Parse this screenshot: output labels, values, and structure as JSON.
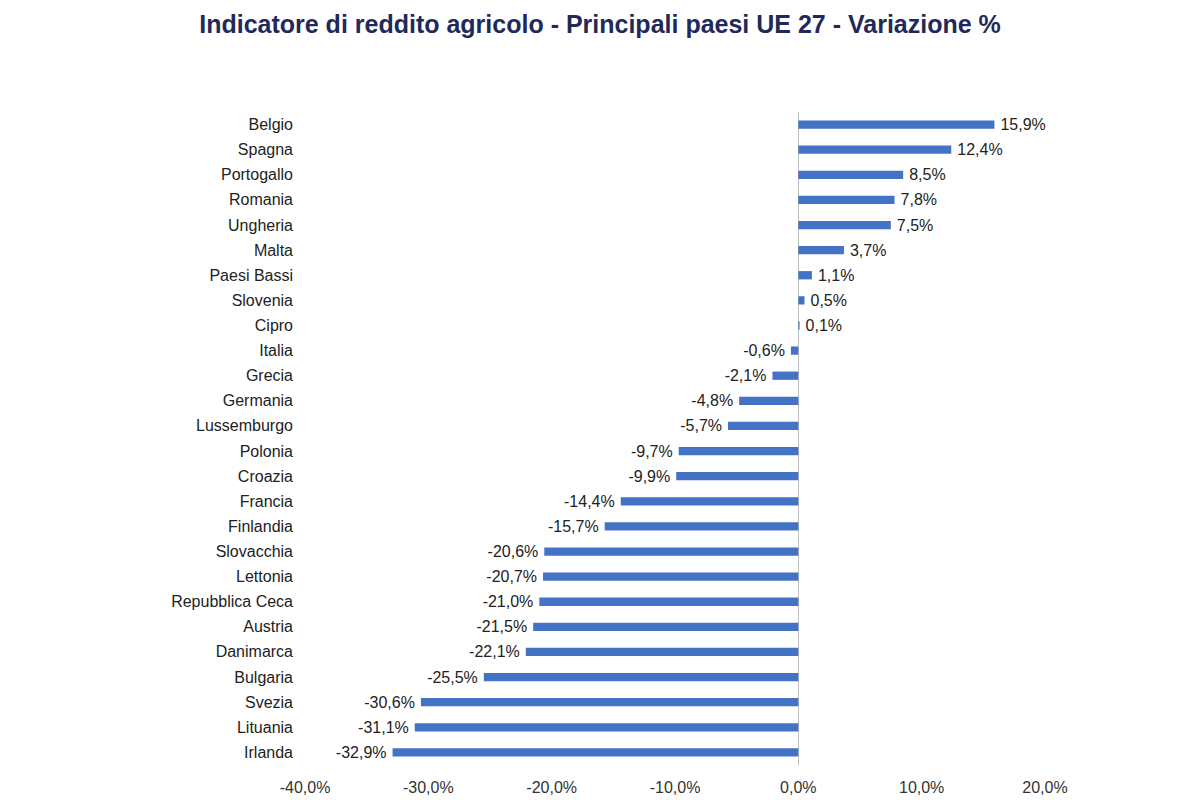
{
  "chart_data": {
    "type": "bar",
    "title": "Indicatore di reddito agricolo - Principali paesi UE 27 - Variazione %",
    "orientation": "horizontal",
    "categories": [
      "Belgio",
      "Spagna",
      "Portogallo",
      "Romania",
      "Ungheria",
      "Malta",
      "Paesi Bassi",
      "Slovenia",
      "Cipro",
      "Italia",
      "Grecia",
      "Germania",
      "Lussemburgo",
      "Polonia",
      "Croazia",
      "Francia",
      "Finlandia",
      "Slovacchia",
      "Lettonia",
      "Repubblica Ceca",
      "Austria",
      "Danimarca",
      "Bulgaria",
      "Svezia",
      "Lituania",
      "Irlanda"
    ],
    "values": [
      15.9,
      12.4,
      8.5,
      7.8,
      7.5,
      3.7,
      1.1,
      0.5,
      0.1,
      -0.6,
      -2.1,
      -4.8,
      -5.7,
      -9.7,
      -9.9,
      -14.4,
      -15.7,
      -20.6,
      -20.7,
      -21.0,
      -21.5,
      -22.1,
      -25.5,
      -30.6,
      -31.1,
      -32.9
    ],
    "value_labels": [
      "15,9%",
      "12,4%",
      "8,5%",
      "7,8%",
      "7,5%",
      "3,7%",
      "1,1%",
      "0,5%",
      "0,1%",
      "-0,6%",
      "-2,1%",
      "-4,8%",
      "-5,7%",
      "-9,7%",
      "-9,9%",
      "-14,4%",
      "-15,7%",
      "-20,6%",
      "-20,7%",
      "-21,0%",
      "-21,5%",
      "-22,1%",
      "-25,5%",
      "-30,6%",
      "-31,1%",
      "-32,9%"
    ],
    "color": "#4472c4",
    "xlim": [
      -40,
      20
    ],
    "xticks": [
      {
        "value": -40,
        "label": "-40,0%"
      },
      {
        "value": -30,
        "label": "-30,0%"
      },
      {
        "value": -20,
        "label": "-20,0%"
      },
      {
        "value": -10,
        "label": "-10,0%"
      },
      {
        "value": 0,
        "label": "0,0%"
      },
      {
        "value": 10,
        "label": "10,0%"
      },
      {
        "value": 20,
        "label": "20,0%"
      }
    ],
    "data_labels": true,
    "grid": false
  }
}
